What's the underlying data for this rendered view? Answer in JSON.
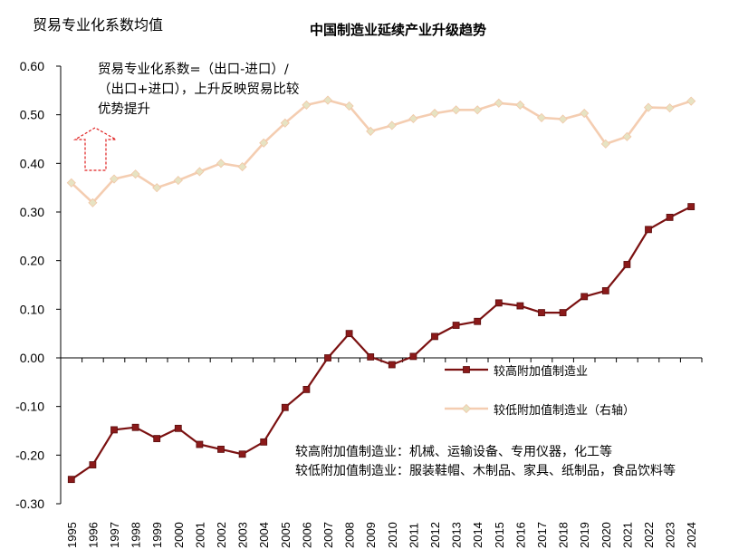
{
  "header": {
    "y_axis_title": "贸易专业化系数均值",
    "title": "中国制造业延续产业升级趋势"
  },
  "annotations": {
    "formula": "贸易专业化系数=（出口-进口）/（出口+进口），上升反映贸易比较优势提升",
    "arrow_icon": "dashed-up-arrow-icon",
    "note_high": "较高附加值制造业：机械、运输设备、专用仪器，化工等",
    "note_low": "较低附加值制造业：服装鞋帽、木制品、家具、纸制品，食品饮料等"
  },
  "chart_data": {
    "type": "line",
    "title": "中国制造业延续产业升级趋势",
    "ylabel": "贸易专业化系数均值",
    "xlabel": "",
    "x": [
      1995,
      1996,
      1997,
      1998,
      1999,
      2000,
      2001,
      2002,
      2003,
      2004,
      2005,
      2006,
      2007,
      2008,
      2009,
      2010,
      2011,
      2012,
      2013,
      2014,
      2015,
      2016,
      2017,
      2018,
      2019,
      2020,
      2021,
      2022,
      2023,
      2024
    ],
    "x_tick_labels": [
      "1995",
      "1996",
      "1997",
      "1998",
      "1999",
      "2000",
      "2001",
      "2002",
      "2003",
      "2004",
      "2005",
      "2006",
      "2007",
      "2008",
      "2009",
      "2010",
      "2011",
      "2012",
      "2013",
      "2014",
      "2015",
      "2016",
      "2017",
      "2018",
      "2019",
      "2020",
      "2021",
      "2022",
      "2023",
      "2024"
    ],
    "ylim": [
      -0.3,
      0.6
    ],
    "y_ticks": [
      -0.3,
      -0.2,
      -0.1,
      0.0,
      0.1,
      0.2,
      0.3,
      0.4,
      0.5,
      0.6
    ],
    "y_tick_labels": [
      "-0.30",
      "-0.20",
      "-0.10",
      "0.00",
      "0.10",
      "0.20",
      "0.30",
      "0.40",
      "0.50",
      "0.60"
    ],
    "grid": false,
    "legend_position": "right-middle",
    "series": [
      {
        "name": "较高附加值制造业",
        "color": "#7b1111",
        "marker": "square",
        "axis": "left",
        "values": [
          -0.25,
          -0.22,
          -0.148,
          -0.143,
          -0.166,
          -0.145,
          -0.178,
          -0.188,
          -0.198,
          -0.173,
          -0.102,
          -0.065,
          0.0,
          0.05,
          0.002,
          -0.014,
          0.003,
          0.044,
          0.067,
          0.075,
          0.113,
          0.107,
          0.093,
          0.093,
          0.126,
          0.138,
          0.192,
          0.264,
          0.289,
          0.311
        ]
      },
      {
        "name": "较低附加值制造业（右轴）",
        "color": "#f4cdb1",
        "marker": "diamond",
        "axis": "right",
        "values": [
          0.36,
          0.319,
          0.368,
          0.378,
          0.35,
          0.365,
          0.383,
          0.4,
          0.393,
          0.442,
          0.483,
          0.52,
          0.53,
          0.518,
          0.466,
          0.478,
          0.492,
          0.503,
          0.51,
          0.51,
          0.524,
          0.52,
          0.494,
          0.491,
          0.503,
          0.44,
          0.455,
          0.515,
          0.514,
          0.528
        ]
      }
    ]
  }
}
